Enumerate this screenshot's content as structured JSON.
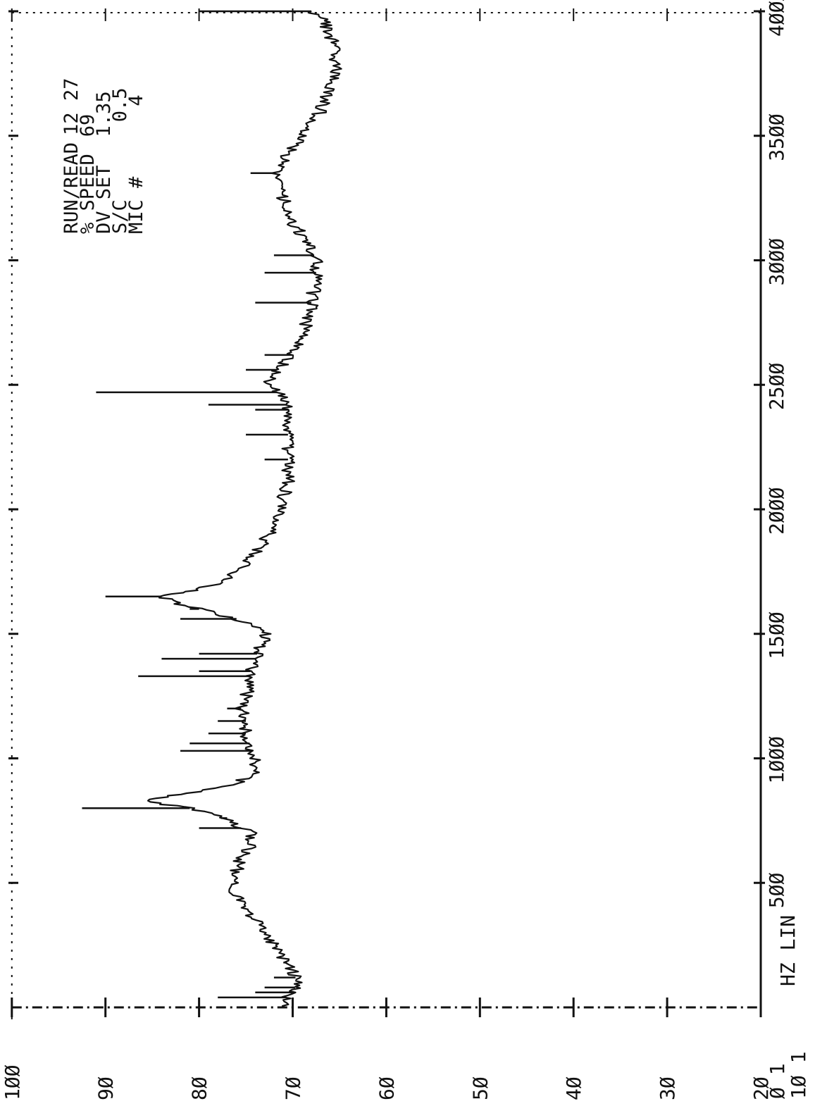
{
  "header": {
    "lines": [
      {
        "label": "RUN/READ",
        "value": "12 27"
      },
      {
        "label": "% SPEED",
        "value": "69"
      },
      {
        "label": "DV SET",
        "value": "1.35"
      },
      {
        "label": "S/C",
        "value": "0.5"
      },
      {
        "label": "MIC #",
        "value": "4"
      }
    ]
  },
  "chart_data": {
    "type": "line",
    "orientation": "rotated-90",
    "x_axis": {
      "unit_label": "HZ LIN",
      "scale_note": [
        "Ø 1",
        "1Ø 1"
      ],
      "range": [
        0,
        4000
      ],
      "ticks": [
        {
          "value": 500,
          "label": "5ØØ"
        },
        {
          "value": 1000,
          "label": "1ØØØ"
        },
        {
          "value": 1500,
          "label": "15ØØ"
        },
        {
          "value": 2000,
          "label": "2ØØØ"
        },
        {
          "value": 2500,
          "label": "25ØØ"
        },
        {
          "value": 3000,
          "label": "3ØØØ"
        },
        {
          "value": 3500,
          "label": "35ØØ"
        },
        {
          "value": 4000,
          "label": "4ØØØ"
        }
      ]
    },
    "y_axis": {
      "range": [
        20,
        100
      ],
      "ticks": [
        {
          "value": 100,
          "label": "1ØØ"
        },
        {
          "value": 90,
          "label": "9Ø"
        },
        {
          "value": 80,
          "label": "8Ø"
        },
        {
          "value": 70,
          "label": "7Ø"
        },
        {
          "value": 60,
          "label": "6Ø"
        },
        {
          "value": 50,
          "label": "5Ø"
        },
        {
          "value": 40,
          "label": "4Ø"
        },
        {
          "value": 30,
          "label": "3Ø"
        },
        {
          "value": 20,
          "label": "2Ø"
        }
      ]
    },
    "grid": false,
    "series": [
      {
        "x": [
          0,
          30,
          60,
          100,
          150,
          200,
          250,
          300,
          350,
          400,
          450,
          500,
          550,
          600,
          650,
          700,
          750,
          780,
          800,
          815,
          830,
          845,
          860,
          880,
          900,
          950,
          1000,
          1050,
          1100,
          1150,
          1200,
          1250,
          1300,
          1350,
          1400,
          1450,
          1480,
          1500,
          1530,
          1560,
          1590,
          1620,
          1635,
          1650,
          1665,
          1680,
          1700,
          1750,
          1800,
          1850,
          1900,
          1950,
          2000,
          2050,
          2100,
          2150,
          2200,
          2250,
          2300,
          2350,
          2400,
          2450,
          2480,
          2500,
          2550,
          2600,
          2650,
          2700,
          2750,
          2800,
          2850,
          2900,
          2950,
          3000,
          3050,
          3100,
          3150,
          3200,
          3250,
          3300,
          3350,
          3400,
          3450,
          3500,
          3550,
          3600,
          3650,
          3700,
          3750,
          3800,
          3850,
          3900,
          3950,
          3980,
          4000
        ],
        "y": [
          71,
          71,
          70,
          69.5,
          70,
          71,
          72,
          73,
          74,
          75,
          76,
          76.5,
          76,
          75.5,
          74.5,
          74.5,
          77,
          79,
          81,
          84,
          86,
          84,
          81,
          78,
          76,
          74,
          74,
          74.5,
          75,
          75,
          75.5,
          75,
          74.5,
          74.5,
          74,
          73.5,
          73,
          73,
          74,
          76,
          79,
          82,
          83,
          84,
          82,
          80,
          78,
          76,
          74.5,
          73.5,
          72.5,
          72,
          71.5,
          71,
          70.5,
          70.5,
          70.5,
          70.5,
          70.5,
          70.5,
          70.5,
          71,
          72,
          73,
          72,
          70.5,
          69.5,
          69,
          68.5,
          68,
          68,
          67.5,
          67.5,
          67.5,
          68,
          69,
          70,
          70.5,
          71,
          71.5,
          72,
          71,
          70,
          69,
          68,
          67,
          66.5,
          66,
          65.5,
          65.5,
          65.5,
          66,
          66.5,
          67,
          68
        ]
      }
    ],
    "spikes": [
      {
        "x": 40,
        "y": 78
      },
      {
        "x": 60,
        "y": 74
      },
      {
        "x": 80,
        "y": 73
      },
      {
        "x": 120,
        "y": 72
      },
      {
        "x": 180,
        "y": 71
      },
      {
        "x": 720,
        "y": 80
      },
      {
        "x": 760,
        "y": 77
      },
      {
        "x": 800,
        "y": 92.5
      },
      {
        "x": 1030,
        "y": 82
      },
      {
        "x": 1060,
        "y": 81
      },
      {
        "x": 1100,
        "y": 79
      },
      {
        "x": 1150,
        "y": 78
      },
      {
        "x": 1200,
        "y": 77
      },
      {
        "x": 1330,
        "y": 86.5
      },
      {
        "x": 1350,
        "y": 80
      },
      {
        "x": 1400,
        "y": 84
      },
      {
        "x": 1420,
        "y": 80
      },
      {
        "x": 1560,
        "y": 82
      },
      {
        "x": 1600,
        "y": 81
      },
      {
        "x": 1650,
        "y": 90
      },
      {
        "x": 2200,
        "y": 73
      },
      {
        "x": 2300,
        "y": 75
      },
      {
        "x": 2400,
        "y": 74
      },
      {
        "x": 2420,
        "y": 79
      },
      {
        "x": 2470,
        "y": 91
      },
      {
        "x": 2560,
        "y": 75
      },
      {
        "x": 2620,
        "y": 73
      },
      {
        "x": 2830,
        "y": 74
      },
      {
        "x": 2950,
        "y": 73
      },
      {
        "x": 3020,
        "y": 72
      },
      {
        "x": 3350,
        "y": 74.5
      },
      {
        "x": 4000,
        "y": 80
      }
    ]
  }
}
